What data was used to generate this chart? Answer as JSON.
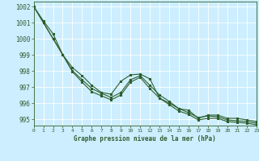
{
  "x": [
    0,
    1,
    2,
    3,
    4,
    5,
    6,
    7,
    8,
    9,
    10,
    11,
    12,
    13,
    14,
    15,
    16,
    17,
    18,
    19,
    20,
    21,
    22,
    23
  ],
  "line1": [
    1002.0,
    1001.1,
    1000.3,
    999.0,
    998.2,
    997.7,
    997.1,
    996.65,
    996.55,
    997.35,
    997.75,
    997.8,
    997.5,
    996.3,
    996.0,
    995.65,
    995.55,
    995.05,
    995.25,
    995.25,
    995.05,
    995.05,
    994.95,
    994.85
  ],
  "line2": [
    1002.0,
    1001.0,
    1000.0,
    999.0,
    998.0,
    997.5,
    997.0,
    996.7,
    996.4,
    996.8,
    997.5,
    997.8,
    997.2,
    996.6,
    996.2,
    995.75,
    995.5,
    995.2,
    995.3,
    995.2,
    995.1,
    995.0,
    994.9,
    994.8
  ],
  "line3": [
    1002.0,
    1001.0,
    1000.0,
    999.0,
    998.0,
    997.5,
    997.0,
    996.7,
    996.4,
    996.8,
    997.7,
    997.8,
    997.2,
    996.6,
    996.2,
    995.75,
    995.5,
    995.2,
    995.3,
    995.2,
    995.1,
    995.0,
    994.9,
    994.8
  ],
  "bg_color": "#cceeff",
  "grid_color": "#ffffff",
  "line_color": "#2d5e2d",
  "title": "Graphe pression niveau de la mer (hPa)",
  "ylim": [
    994.6,
    1002.3
  ],
  "yticks": [
    995,
    996,
    997,
    998,
    999,
    1000,
    1001,
    1002
  ],
  "xlim": [
    0,
    23
  ],
  "xticks": [
    0,
    1,
    2,
    3,
    4,
    5,
    6,
    7,
    8,
    9,
    10,
    11,
    12,
    13,
    14,
    15,
    16,
    17,
    18,
    19,
    20,
    21,
    22,
    23
  ]
}
